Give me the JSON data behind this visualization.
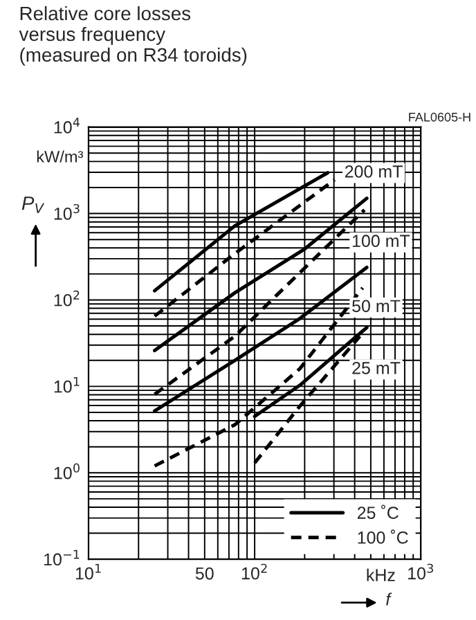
{
  "chart_data": {
    "type": "line",
    "title": "Relative core losses\nversus frequency\n(measured on R34 toroids)",
    "xlabel": "f",
    "ylabel": "P$_{V}$",
    "annotations": [
      "FAL0605-H",
      "kW/m³",
      "kHz",
      "200 mT",
      "100 mT",
      "50 mT",
      "25 mT"
    ],
    "log": "xy",
    "xlim": [
      10,
      1000
    ],
    "ylim": [
      0.1,
      10000
    ],
    "xticks": [
      {
        "value": 10,
        "label": "10$^{1}$"
      },
      50,
      {
        "value": 100,
        "label": "10$^{2}$"
      },
      {
        "value": 1000,
        "label": "10$^{3}$"
      }
    ],
    "yticks": [
      {
        "value": 0.1,
        "label": "10$^{−1}$"
      },
      {
        "value": 1,
        "label": "10$^{0}$"
      },
      {
        "value": 10,
        "label": "10$^{1}$"
      },
      {
        "value": 100,
        "label": "10$^{2}$"
      },
      {
        "value": 1000,
        "label": "10$^{3}$"
      },
      {
        "value": 10000,
        "label": "10$^{4}$"
      }
    ],
    "grid": true,
    "legend": "bottom right",
    "marker": "none",
    "series": [
      {
        "name": "25 ˚C",
        "color": "#000000",
        "line_style": "solid",
        "x": [
          25,
          76,
          275
        ],
        "values": [
          128,
          720,
          2960
        ]
      },
      {
        "name": "100 ˚C",
        "color": "#000000",
        "line_style": "dashed",
        "x": [
          25,
          76,
          303
        ],
        "values": [
          65,
          344,
          2460
        ]
      },
      {
        "color": "#000000",
        "line_style": "solid",
        "x": [
          25,
          76,
          200,
          473
        ],
        "values": [
          26,
          121,
          389,
          1500
        ]
      },
      {
        "color": "#000000",
        "line_style": "dashed",
        "x": [
          25,
          76,
          136,
          458
        ],
        "values": [
          8.1,
          38,
          114,
          1100
        ]
      },
      {
        "color": "#000000",
        "line_style": "solid",
        "x": [
          25,
          76,
          187,
          473
        ],
        "values": [
          5.2,
          20,
          61,
          238
        ]
      },
      {
        "color": "#000000",
        "line_style": "dashed",
        "x": [
          25,
          76,
          187,
          447
        ],
        "values": [
          1.2,
          3.6,
          16,
          138
        ]
      },
      {
        "color": "#000000",
        "line_style": "solid",
        "x": [
          100,
          187,
          473
        ],
        "values": [
          4.5,
          10.3,
          48
        ]
      },
      {
        "color": "#000000",
        "line_style": "dashed",
        "x": [
          100,
          187,
          430
        ],
        "values": [
          1.3,
          5.9,
          38
        ]
      }
    ]
  }
}
